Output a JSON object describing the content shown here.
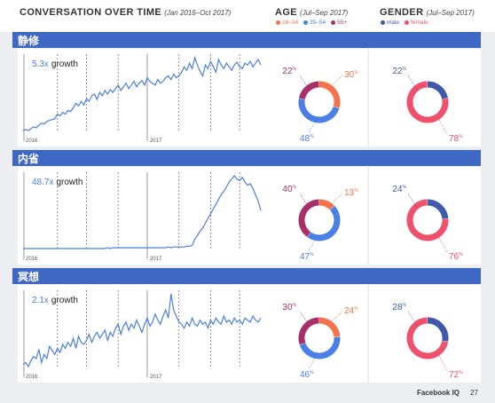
{
  "header": {
    "title": "CONVERSATION OVER TIME",
    "title_sub": "(Jan 2016–Oct 2017)",
    "age_title": "AGE",
    "age_sub": "(Jul–Sep 2017)",
    "gender_title": "GENDER",
    "gender_sub": "(Jul–Sep 2017)",
    "age_legend": [
      {
        "label": "18–34",
        "color": "#f4734a"
      },
      {
        "label": "35–54",
        "color": "#4a7fe6"
      },
      {
        "label": "55+",
        "color": "#a8306a"
      }
    ],
    "gender_legend": [
      {
        "label": "male",
        "color": "#3f5aa8"
      },
      {
        "label": "female",
        "color": "#f0506b"
      }
    ]
  },
  "colors": {
    "line": "#4a7fe6",
    "age_18_34": "#f4734a",
    "age_35_54": "#4a7fe6",
    "age_55_plus": "#a8306a",
    "male": "#3f5aa8",
    "female": "#f0506b"
  },
  "footer": {
    "brand": "Facebook IQ",
    "page": "27"
  },
  "chart_data": [
    {
      "type": "line",
      "section": "静修",
      "growth_value": "5.3x",
      "growth_word": "growth",
      "x_labels": [
        "2016",
        "2017"
      ],
      "values": [
        20,
        21,
        20,
        22,
        24,
        23,
        26,
        28,
        27,
        30,
        31,
        32,
        33,
        38,
        36,
        40,
        38,
        42,
        41,
        45,
        50,
        47,
        52,
        48,
        55,
        52,
        58,
        60,
        54,
        62,
        58,
        64,
        60,
        65,
        62,
        66,
        70,
        64,
        68,
        72,
        66,
        70,
        74,
        68,
        72,
        75,
        70,
        78,
        74,
        72,
        70,
        76,
        72,
        74,
        78,
        80,
        76,
        82,
        78,
        80,
        84,
        90,
        86,
        94,
        88,
        100,
        92,
        85,
        80,
        92,
        88,
        96,
        90,
        84,
        98,
        92,
        88,
        94,
        90,
        86,
        92,
        95,
        90,
        88,
        94,
        92,
        96,
        90,
        94,
        98,
        92
      ],
      "age": {
        "segments": [
          {
            "label": "18–34",
            "value": 30
          },
          {
            "label": "35–54",
            "value": 48
          },
          {
            "label": "55+",
            "value": 22
          }
        ]
      },
      "gender": {
        "segments": [
          {
            "label": "male",
            "value": 22
          },
          {
            "label": "female",
            "value": 78
          }
        ]
      }
    },
    {
      "type": "line",
      "section": "内省",
      "growth_value": "48.7x",
      "growth_word": "growth",
      "x_labels": [
        "2016",
        "2017"
      ],
      "values": [
        2,
        2,
        2,
        2,
        2,
        2,
        2,
        2,
        2,
        2,
        2,
        2,
        2,
        2,
        2,
        2,
        2,
        2,
        2,
        2,
        2,
        2,
        2,
        2,
        2,
        2,
        2,
        2,
        2,
        2,
        2,
        2,
        3,
        2,
        3,
        3,
        3,
        3,
        3,
        3,
        3,
        3,
        3,
        3,
        3,
        3,
        3,
        3,
        3,
        3,
        3,
        3,
        3,
        3,
        3,
        4,
        3,
        4,
        4,
        4,
        4,
        4,
        5,
        5,
        6,
        14,
        18,
        24,
        28,
        34,
        40,
        46,
        52,
        58,
        64,
        70,
        74,
        80,
        86,
        90,
        94,
        90,
        88,
        92,
        86,
        82,
        84,
        78,
        70,
        62,
        50
      ],
      "age": {
        "segments": [
          {
            "label": "18–34",
            "value": 13
          },
          {
            "label": "35–54",
            "value": 47
          },
          {
            "label": "55+",
            "value": 40
          }
        ]
      },
      "gender": {
        "segments": [
          {
            "label": "male",
            "value": 24
          },
          {
            "label": "female",
            "value": 76
          }
        ]
      }
    },
    {
      "type": "line",
      "section": "冥想",
      "growth_value": "2.1x",
      "growth_word": "growth",
      "x_labels": [
        "2016",
        "2017"
      ],
      "values": [
        30,
        32,
        28,
        34,
        38,
        36,
        45,
        32,
        40,
        36,
        48,
        44,
        40,
        46,
        42,
        50,
        46,
        52,
        48,
        56,
        46,
        58,
        52,
        50,
        54,
        60,
        52,
        58,
        62,
        56,
        60,
        64,
        54,
        62,
        58,
        66,
        70,
        60,
        68,
        72,
        64,
        70,
        66,
        74,
        68,
        62,
        70,
        76,
        68,
        72,
        80,
        74,
        70,
        78,
        84,
        76,
        100,
        84,
        78,
        72,
        70,
        66,
        72,
        68,
        76,
        70,
        68,
        74,
        70,
        72,
        66,
        74,
        70,
        76,
        72,
        70,
        78,
        72,
        74,
        70,
        76,
        72,
        74,
        70,
        76,
        74,
        72,
        78,
        74,
        72,
        76
      ],
      "age": {
        "segments": [
          {
            "label": "18–34",
            "value": 24
          },
          {
            "label": "35–54",
            "value": 46
          },
          {
            "label": "55+",
            "value": 30
          }
        ]
      },
      "gender": {
        "segments": [
          {
            "label": "male",
            "value": 28
          },
          {
            "label": "female",
            "value": 72
          }
        ]
      }
    }
  ]
}
